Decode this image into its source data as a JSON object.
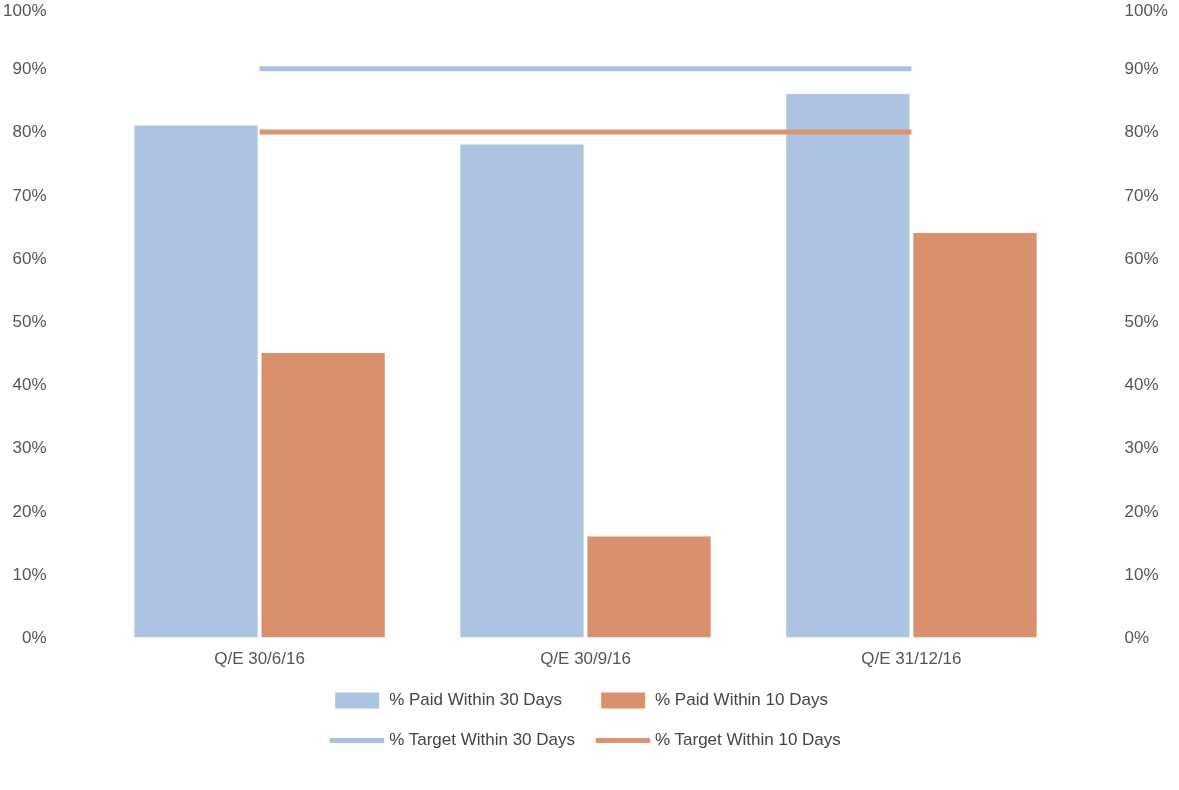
{
  "chart_data": {
    "type": "bar",
    "categories": [
      "Q/E 30/6/16",
      "Q/E 30/9/16",
      "Q/E 31/12/16"
    ],
    "series": [
      {
        "name": "% Paid Within 30 Days",
        "color": "#adc3e2",
        "values": [
          81,
          78,
          86
        ]
      },
      {
        "name": "% Paid Within 10 Days",
        "color": "#d9906c",
        "values": [
          45,
          16,
          64
        ]
      },
      {
        "name": "% Target Within 30 Days",
        "type": "line",
        "color": "#a9c1e0",
        "values": [
          90,
          90,
          90
        ]
      },
      {
        "name": "% Target Within 10 Days",
        "type": "line",
        "color": "#d9956f",
        "values": [
          80,
          80,
          80
        ]
      }
    ],
    "ylim": [
      0,
      100
    ],
    "yticks": [
      {
        "value": 0,
        "label": "0%"
      },
      {
        "value": 10,
        "label": "10%"
      },
      {
        "value": 20,
        "label": "20%"
      },
      {
        "value": 30,
        "label": "30%"
      },
      {
        "value": 40,
        "label": "40%"
      },
      {
        "value": 50,
        "label": "50%"
      },
      {
        "value": 60,
        "label": "60%"
      },
      {
        "value": 70,
        "label": "70%"
      },
      {
        "value": 80,
        "label": "80%"
      },
      {
        "value": 90,
        "label": "90%"
      },
      {
        "value": 100,
        "label": "100%"
      }
    ],
    "y2lim": [
      0,
      100
    ],
    "y2ticks": [
      {
        "value": 0,
        "label": "0%"
      },
      {
        "value": 10,
        "label": "10%"
      },
      {
        "value": 20,
        "label": "20%"
      },
      {
        "value": 30,
        "label": "30%"
      },
      {
        "value": 40,
        "label": "40%"
      },
      {
        "value": 50,
        "label": "50%"
      },
      {
        "value": 60,
        "label": "60%"
      },
      {
        "value": 70,
        "label": "70%"
      },
      {
        "value": 80,
        "label": "80%"
      },
      {
        "value": 90,
        "label": "90%"
      },
      {
        "value": 100,
        "label": "100%"
      }
    ],
    "grid": false,
    "legend": "bottom",
    "line_style": "solid",
    "marker": "none"
  }
}
